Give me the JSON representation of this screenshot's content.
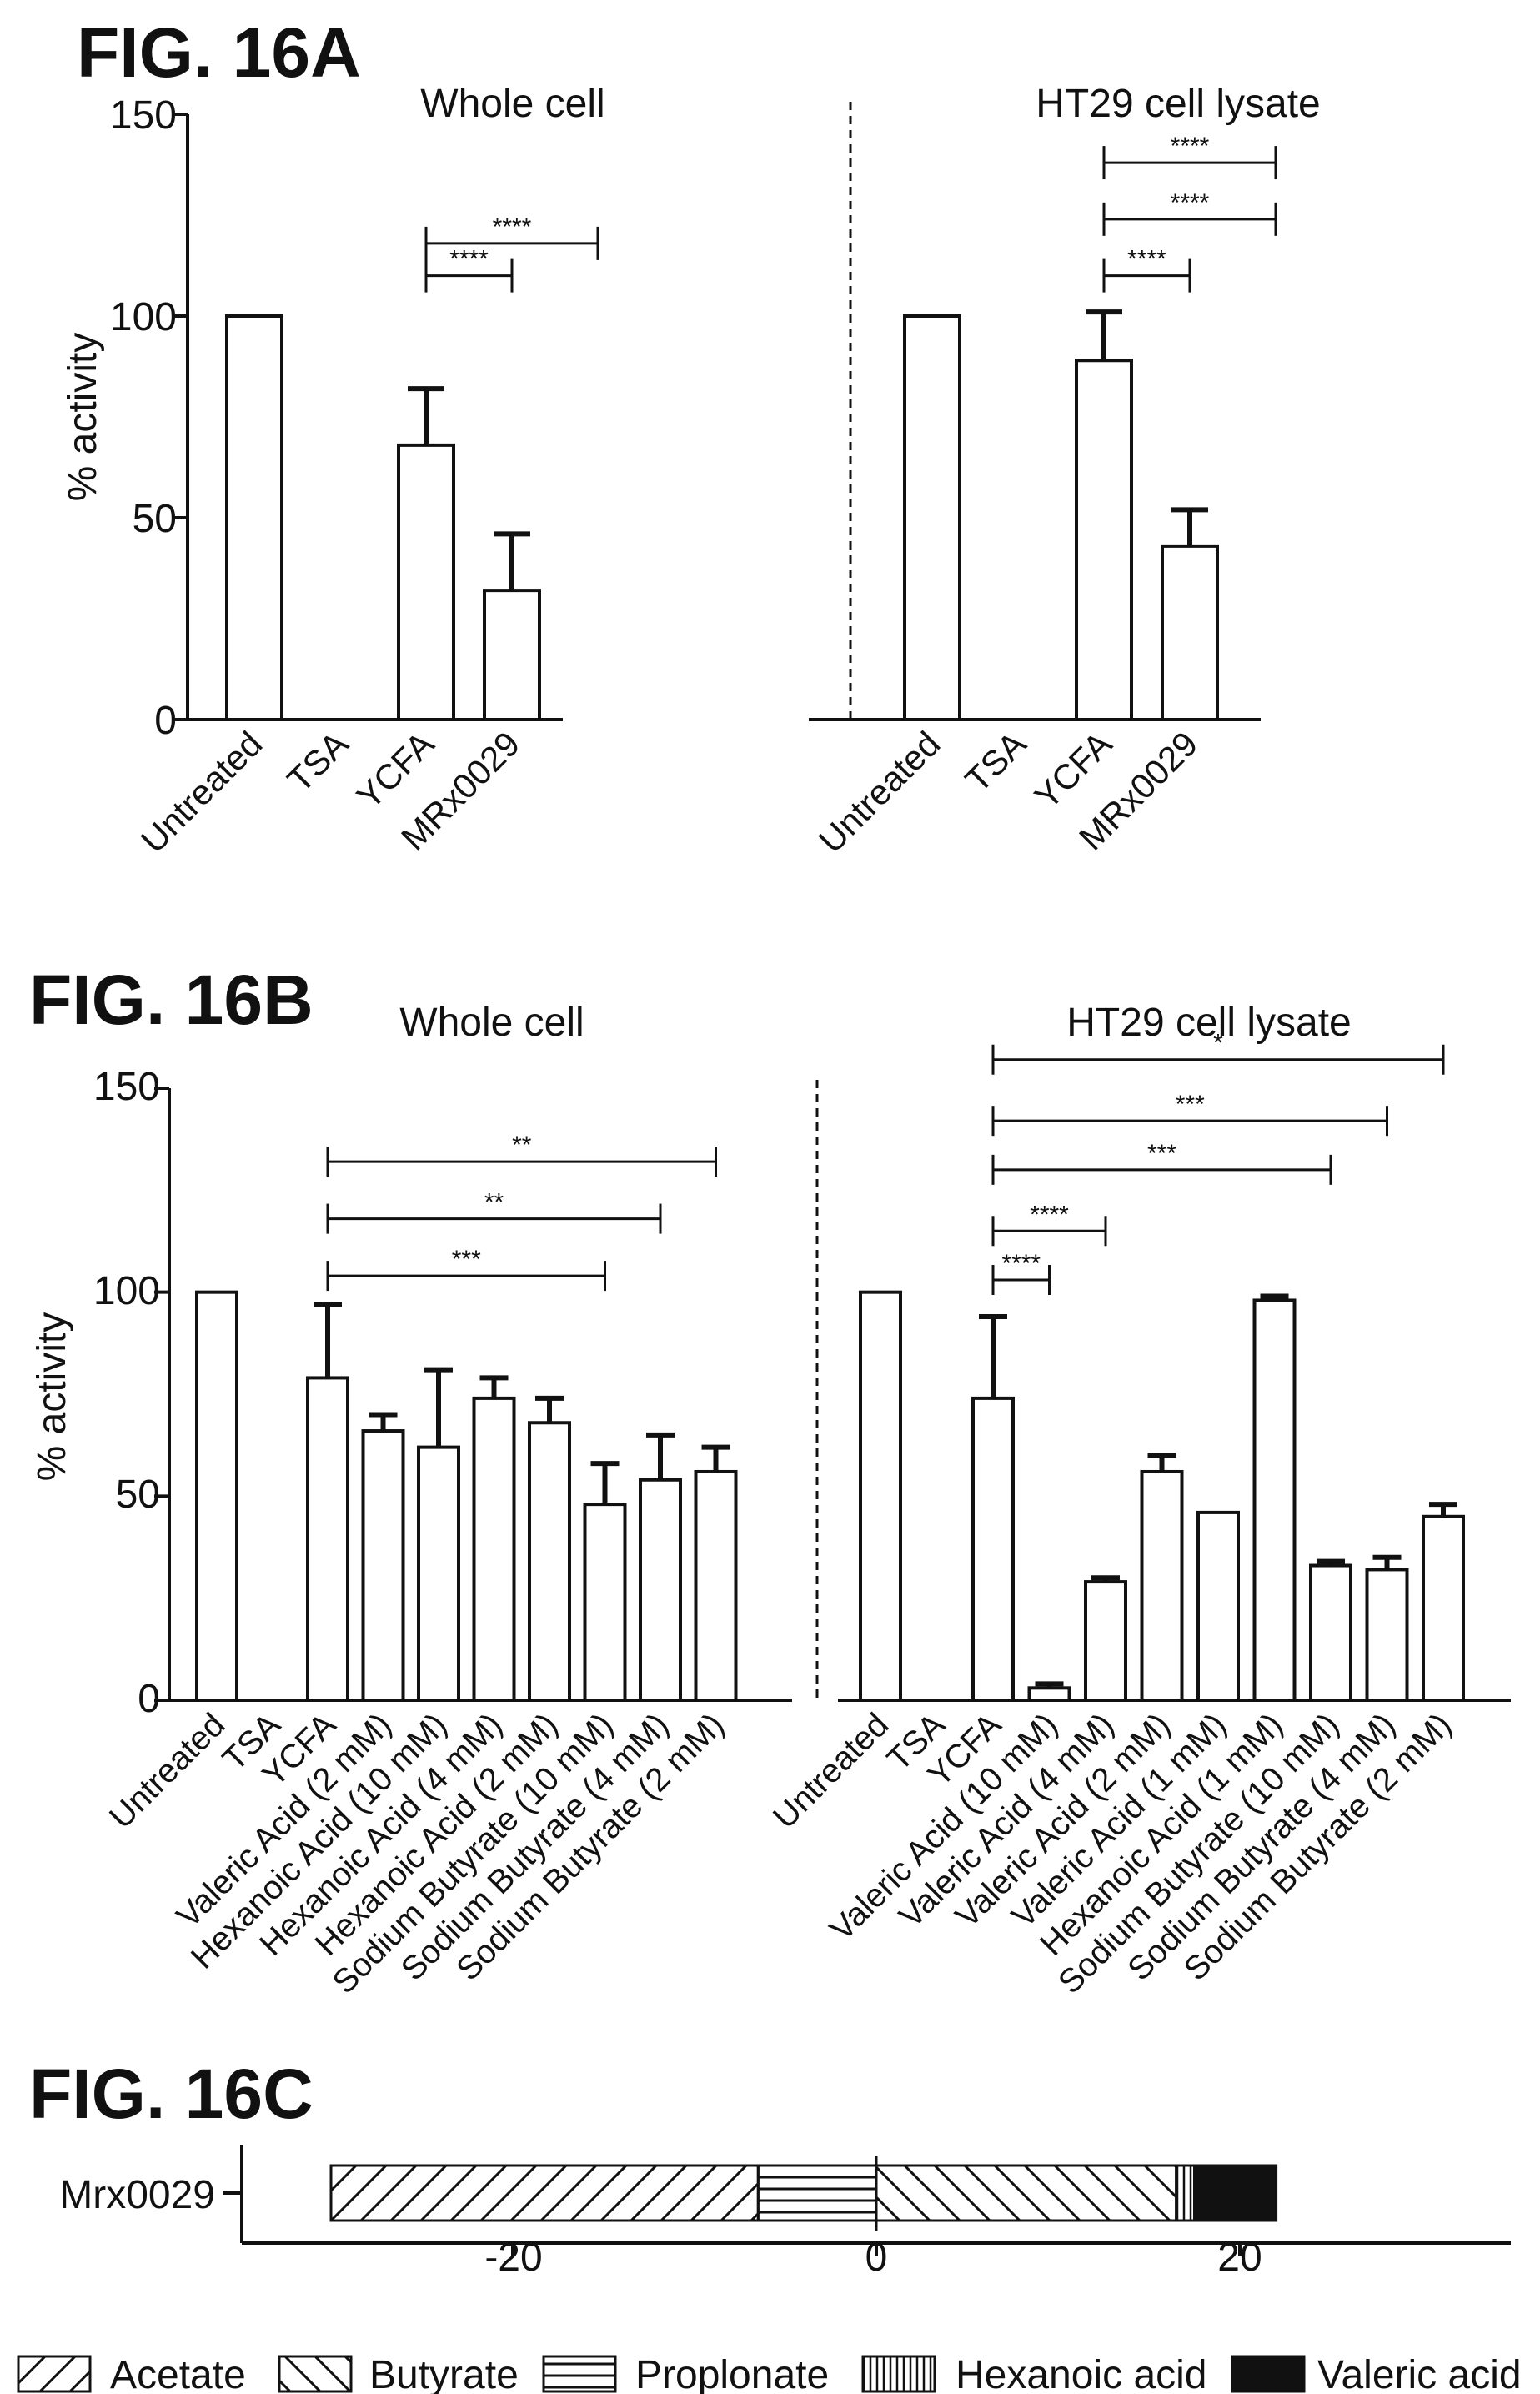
{
  "fig16A": {
    "label": "FIG. 16A",
    "ylabel": "% activity",
    "yticks": [
      "0",
      "50",
      "100",
      "150"
    ],
    "panels": [
      {
        "title": "Whole cell",
        "chart_data": {
          "type": "bar",
          "categories": [
            "Untreated",
            "TSA",
            "YCFA",
            "MRx0029"
          ],
          "values": [
            100,
            0,
            68,
            32
          ],
          "errors": [
            0,
            0,
            14,
            14
          ],
          "ylim": [
            0,
            150
          ],
          "significance": [
            {
              "from": 2,
              "to": 3,
              "y": 110,
              "label": "****"
            },
            {
              "from": 2,
              "to": 4,
              "y": 118,
              "label": "****"
            }
          ]
        }
      },
      {
        "title": "HT29 cell lysate",
        "chart_data": {
          "type": "bar",
          "categories": [
            "Untreated",
            "TSA",
            "YCFA",
            "MRx0029"
          ],
          "values": [
            100,
            0,
            89,
            43
          ],
          "errors": [
            0,
            0,
            12,
            9
          ],
          "ylim": [
            0,
            150
          ],
          "significance": [
            {
              "from": 2,
              "to": 3,
              "y": 110,
              "label": "****"
            },
            {
              "from": 2,
              "to": 4,
              "y": 124,
              "label": "****"
            },
            {
              "from": 2,
              "to": 5,
              "y": 138,
              "label": "****"
            }
          ]
        }
      }
    ]
  },
  "fig16B": {
    "label": "FIG. 16B",
    "ylabel": "% activity",
    "yticks": [
      "0",
      "50",
      "100",
      "150"
    ],
    "panels": [
      {
        "title": "Whole cell",
        "chart_data": {
          "type": "bar",
          "categories": [
            "Untreated",
            "TSA",
            "YCFA",
            "Valeric Acid (2 mM)",
            "Hexanoic Acid (10 mM)",
            "Hexanoic Acid (4 mM)",
            "Hexanoic Acid (2 mM)",
            "Sodium Butyrate (10 mM)",
            "Sodium Butyrate (4 mM)",
            "Sodium Butyrate (2 mM)"
          ],
          "values": [
            100,
            0,
            79,
            66,
            62,
            74,
            68,
            48,
            54,
            56
          ],
          "errors": [
            0,
            0,
            18,
            4,
            19,
            5,
            6,
            10,
            11,
            6
          ],
          "ylim": [
            0,
            150
          ],
          "significance": [
            {
              "from": 2,
              "to": 7,
              "y": 104,
              "label": "***"
            },
            {
              "from": 2,
              "to": 8,
              "y": 118,
              "label": "**"
            },
            {
              "from": 2,
              "to": 9,
              "y": 132,
              "label": "**"
            }
          ]
        }
      },
      {
        "title": "HT29 cell lysate",
        "chart_data": {
          "type": "bar",
          "categories": [
            "Untreated",
            "TSA",
            "YCFA",
            "Valeric Acid (10 mM)",
            "Valeric Acid (4 mM)",
            "Valeric Acid (2 mM)",
            "Valeric Acid (1 mM)",
            "Hexanoic Acid (1 mM)",
            "Sodium Butyrate (10 mM)",
            "Sodium Butyrate (4 mM)",
            "Sodium Butyrate (2 mM)"
          ],
          "values": [
            100,
            0,
            74,
            3,
            29,
            56,
            46,
            98,
            33,
            32,
            45
          ],
          "errors": [
            0,
            0,
            20,
            1,
            1,
            4,
            0,
            1,
            1,
            3,
            3
          ],
          "ylim": [
            0,
            150
          ],
          "significance": [
            {
              "from": 2,
              "to": 3,
              "y": 103,
              "label": "****"
            },
            {
              "from": 2,
              "to": 4,
              "y": 115,
              "label": "****"
            },
            {
              "from": 2,
              "to": 8,
              "y": 130,
              "label": "***"
            },
            {
              "from": 2,
              "to": 9,
              "y": 142,
              "label": "***"
            },
            {
              "from": 2,
              "to": 10,
              "y": 157,
              "label": "*"
            }
          ]
        }
      }
    ]
  },
  "fig16C": {
    "label": "FIG. 16C",
    "row_label": "Mrx0029",
    "xticks": [
      "-20",
      "0",
      "20"
    ],
    "chart_data": {
      "type": "bar",
      "orientation": "horizontal",
      "xlim": [
        -34,
        35
      ],
      "segments": [
        {
          "name": "Acetate",
          "start": -30,
          "end": -6.5,
          "pattern": "diag-right"
        },
        {
          "name": "Propionate",
          "start": -6.5,
          "end": 0,
          "pattern": "horizontal"
        },
        {
          "name": "Butyrate",
          "start": 0,
          "end": 16.5,
          "pattern": "diag-left"
        },
        {
          "name": "Hexanoic acid",
          "start": 16.5,
          "end": 17.5,
          "pattern": "vertical"
        },
        {
          "name": "Valeric acid",
          "start": 17.5,
          "end": 22,
          "pattern": "solid"
        }
      ]
    },
    "legend": [
      {
        "label": "Acetate",
        "pattern": "diag-right"
      },
      {
        "label": "Butyrate",
        "pattern": "diag-left"
      },
      {
        "label": "Proplonate",
        "pattern": "horizontal"
      },
      {
        "label": "Hexanoic acid",
        "pattern": "vertical"
      },
      {
        "label": "Valeric acid",
        "pattern": "solid"
      }
    ]
  }
}
